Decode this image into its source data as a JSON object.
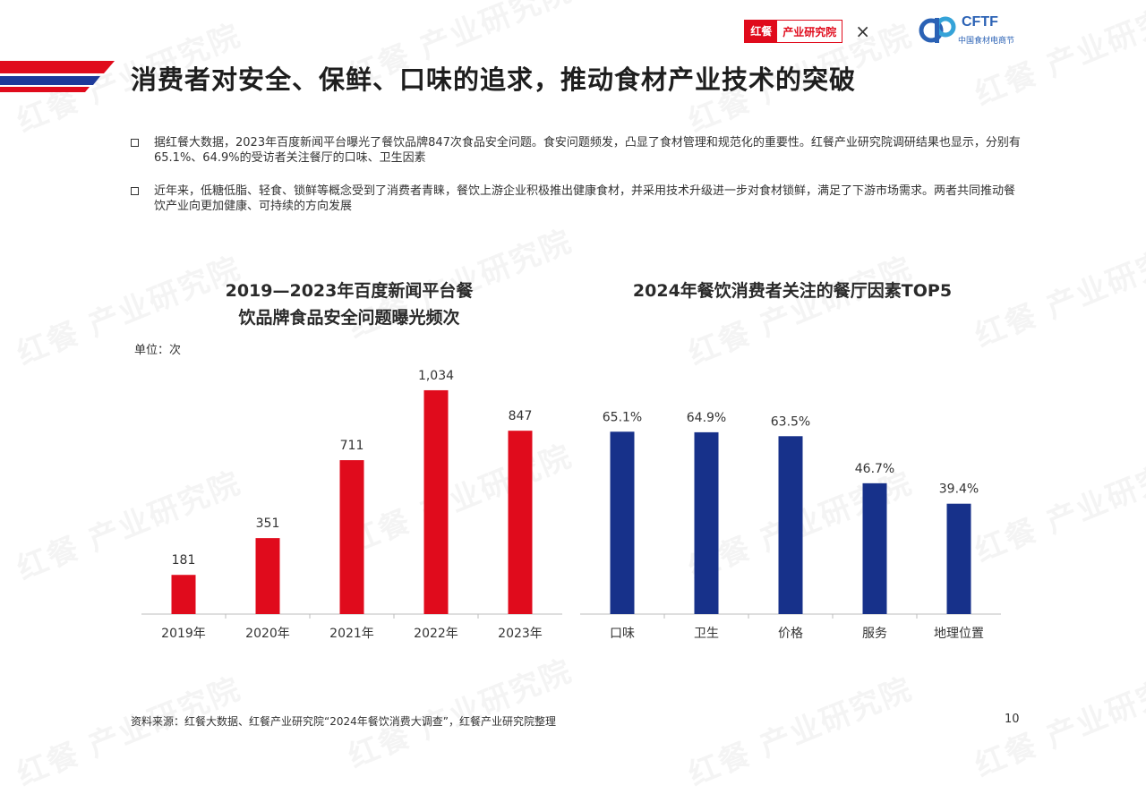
{
  "header": {
    "logo_left_a": "红餐",
    "logo_left_b": "产业研究院",
    "logo_sep": "×",
    "logo_right": "CFTF",
    "logo_right_sub": "中国食材电商节",
    "title": "消费者对安全、保鲜、口味的追求，推动食材产业技术的突破"
  },
  "bullets": [
    "据红餐大数据，2023年百度新闻平台曝光了餐饮品牌847次食品安全问题。食安问题频发，凸显了食材管理和规范化的重要性。红餐产业研究院调研结果也显示，分别有65.1%、64.9%的受访者关注餐厅的口味、卫生因素",
    "近年来，低糖低脂、轻食、锁鲜等概念受到了消费者青睐，餐饮上游企业积极推出健康食材，并采用技术升级进一步对食材锁鲜，满足了下游市场需求。两者共同推动餐饮产业向更加健康、可持续的方向发展"
  ],
  "watermark": "红餐 产业研究院",
  "chart_data": [
    {
      "type": "bar",
      "title": "2019—2023年百度新闻平台餐饮品牌食品安全问题曝光频次",
      "title_lines": [
        "2019—2023年百度新闻平台餐",
        "饮品牌食品安全问题曝光频次"
      ],
      "unit_label": "单位：次",
      "categories": [
        "2019年",
        "2020年",
        "2021年",
        "2022年",
        "2023年"
      ],
      "values": [
        181,
        351,
        711,
        1034,
        847
      ],
      "labels": [
        "181",
        "351",
        "711",
        "1,034",
        "847"
      ],
      "color": "#e00b1c",
      "ylim": [
        0,
        1100
      ],
      "grid": false
    },
    {
      "type": "bar",
      "title": "2024年餐饮消费者关注的餐厅因素TOP5",
      "categories": [
        "口味",
        "卫生",
        "价格",
        "服务",
        "地理位置"
      ],
      "values": [
        65.1,
        64.9,
        63.5,
        46.7,
        39.4
      ],
      "labels": [
        "65.1%",
        "64.9%",
        "63.5%",
        "46.7%",
        "39.4%"
      ],
      "color": "#17318a",
      "ylim": [
        0,
        85
      ],
      "grid": false
    }
  ],
  "footer": {
    "source": "资料来源：红餐大数据、红餐产业研究院“2024年餐饮消费大调查”，红餐产业研究院整理",
    "page": "10"
  }
}
